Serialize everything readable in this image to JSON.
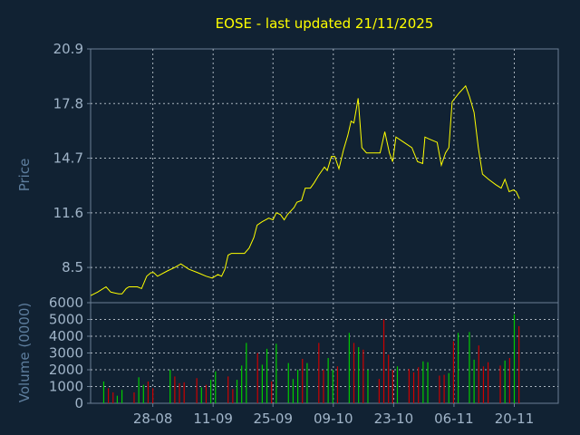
{
  "chart_data": [
    {
      "type": "line",
      "title": "EOSE - last updated 21/11/2025",
      "ylabel": "Price",
      "ylim": [
        6.5,
        20.9
      ],
      "yticks": [
        "20.9",
        "17.8",
        "14.7",
        "11.6",
        "8.5"
      ],
      "grid": true,
      "line_color": "#ffff00",
      "x_range": [
        0,
        100
      ],
      "series": [
        {
          "values": [
            [
              0,
              6.9
            ],
            [
              1.5,
              7.1
            ],
            [
              3.3,
              7.4
            ],
            [
              4.3,
              7.1
            ],
            [
              6.0,
              7.0
            ],
            [
              6.7,
              7.0
            ],
            [
              7.6,
              7.3
            ],
            [
              8.2,
              7.4
            ],
            [
              10.0,
              7.4
            ],
            [
              10.9,
              7.3
            ],
            [
              12.0,
              8.0
            ],
            [
              12.9,
              8.2
            ],
            [
              13.5,
              8.2
            ],
            [
              14.3,
              8.0
            ],
            [
              16.4,
              8.3
            ],
            [
              18.0,
              8.5
            ],
            [
              19.3,
              8.7
            ],
            [
              21.0,
              8.4
            ],
            [
              22.9,
              8.2
            ],
            [
              24.7,
              8.0
            ],
            [
              26.0,
              7.9
            ],
            [
              27.2,
              8.1
            ],
            [
              28.0,
              8.0
            ],
            [
              28.7,
              8.4
            ],
            [
              29.4,
              9.2
            ],
            [
              30.1,
              9.3
            ],
            [
              31.7,
              9.3
            ],
            [
              32.9,
              9.3
            ],
            [
              33.9,
              9.6
            ],
            [
              34.9,
              10.2
            ],
            [
              35.6,
              10.9
            ],
            [
              36.7,
              11.1
            ],
            [
              38.1,
              11.3
            ],
            [
              39.0,
              11.2
            ],
            [
              39.7,
              11.6
            ],
            [
              40.6,
              11.5
            ],
            [
              41.4,
              11.2
            ],
            [
              42.1,
              11.5
            ],
            [
              43.5,
              11.9
            ],
            [
              44.1,
              12.2
            ],
            [
              45.1,
              12.3
            ],
            [
              45.9,
              13.0
            ],
            [
              47.0,
              13.0
            ],
            [
              47.8,
              13.3
            ],
            [
              48.7,
              13.7
            ],
            [
              50.0,
              14.2
            ],
            [
              50.6,
              14.0
            ],
            [
              51.5,
              14.8
            ],
            [
              52.2,
              14.8
            ],
            [
              53.1,
              14.1
            ],
            [
              54.1,
              15.2
            ],
            [
              55.0,
              16.0
            ],
            [
              55.7,
              16.8
            ],
            [
              56.3,
              16.7
            ],
            [
              57.2,
              18.1
            ],
            [
              58.0,
              15.3
            ],
            [
              59.0,
              15.0
            ],
            [
              60.5,
              15.0
            ],
            [
              61.9,
              15.0
            ],
            [
              62.9,
              16.2
            ],
            [
              63.9,
              15.0
            ],
            [
              64.6,
              14.5
            ],
            [
              65.3,
              15.9
            ],
            [
              67.0,
              15.6
            ],
            [
              68.7,
              15.3
            ],
            [
              69.9,
              14.5
            ],
            [
              71.0,
              14.4
            ],
            [
              71.5,
              15.9
            ],
            [
              72.3,
              15.8
            ],
            [
              74.1,
              15.6
            ],
            [
              75.0,
              14.3
            ],
            [
              75.9,
              15.0
            ],
            [
              76.6,
              15.3
            ],
            [
              77.3,
              17.9
            ],
            [
              78.8,
              18.4
            ],
            [
              80.2,
              18.8
            ],
            [
              81.0,
              18.2
            ],
            [
              82.0,
              17.3
            ],
            [
              82.9,
              15.3
            ],
            [
              83.8,
              13.8
            ],
            [
              85.1,
              13.5
            ],
            [
              86.6,
              13.2
            ],
            [
              87.8,
              13.0
            ],
            [
              88.6,
              13.5
            ],
            [
              89.5,
              12.8
            ],
            [
              90.4,
              12.9
            ],
            [
              91.0,
              12.8
            ],
            [
              91.7,
              12.4
            ]
          ]
        }
      ]
    },
    {
      "type": "bar",
      "ylabel": "Volume (0000)",
      "ylim": [
        0,
        6000
      ],
      "yticks": [
        "6000",
        "5000",
        "4000",
        "3000",
        "2000",
        "1000",
        "0"
      ],
      "xticks": [
        {
          "label": "28-08",
          "x": 13.3
        },
        {
          "label": "11-09",
          "x": 26.2
        },
        {
          "label": "25-09",
          "x": 39.0
        },
        {
          "label": "09-10",
          "x": 51.9
        },
        {
          "label": "23-10",
          "x": 64.8
        },
        {
          "label": "06-11",
          "x": 77.7
        },
        {
          "label": "20-11",
          "x": 90.6
        }
      ],
      "grid": true,
      "up_color": "#00cc00",
      "down_color": "#cc0000",
      "values": [
        {
          "x": 2.8,
          "v": 1300,
          "up": true
        },
        {
          "x": 3.8,
          "v": 900,
          "up": false
        },
        {
          "x": 4.8,
          "v": 650,
          "up": false
        },
        {
          "x": 5.7,
          "v": 450,
          "up": true
        },
        {
          "x": 6.7,
          "v": 800,
          "up": true
        },
        {
          "x": 9.3,
          "v": 650,
          "up": false
        },
        {
          "x": 10.3,
          "v": 1550,
          "up": true
        },
        {
          "x": 11.3,
          "v": 1100,
          "up": true
        },
        {
          "x": 12.3,
          "v": 1300,
          "up": false
        },
        {
          "x": 13.3,
          "v": 900,
          "up": false
        },
        {
          "x": 17.0,
          "v": 2000,
          "up": true
        },
        {
          "x": 18.0,
          "v": 1600,
          "up": false
        },
        {
          "x": 19.0,
          "v": 1200,
          "up": false
        },
        {
          "x": 20.0,
          "v": 1250,
          "up": false
        },
        {
          "x": 22.7,
          "v": 1500,
          "up": false
        },
        {
          "x": 23.7,
          "v": 950,
          "up": true
        },
        {
          "x": 24.7,
          "v": 1100,
          "up": false
        },
        {
          "x": 25.7,
          "v": 1400,
          "up": true
        },
        {
          "x": 26.7,
          "v": 1900,
          "up": true
        },
        {
          "x": 29.4,
          "v": 1600,
          "up": false
        },
        {
          "x": 30.4,
          "v": 850,
          "up": false
        },
        {
          "x": 31.3,
          "v": 1400,
          "up": true
        },
        {
          "x": 32.3,
          "v": 2250,
          "up": true
        },
        {
          "x": 33.3,
          "v": 3600,
          "up": true
        },
        {
          "x": 35.7,
          "v": 3000,
          "up": false
        },
        {
          "x": 36.7,
          "v": 2300,
          "up": true
        },
        {
          "x": 37.7,
          "v": 3250,
          "up": true
        },
        {
          "x": 38.7,
          "v": 1300,
          "up": false
        },
        {
          "x": 39.7,
          "v": 3550,
          "up": true
        },
        {
          "x": 42.3,
          "v": 2400,
          "up": true
        },
        {
          "x": 43.3,
          "v": 1450,
          "up": true
        },
        {
          "x": 44.3,
          "v": 2000,
          "up": true
        },
        {
          "x": 45.3,
          "v": 2650,
          "up": false
        },
        {
          "x": 46.3,
          "v": 2400,
          "up": true
        },
        {
          "x": 48.8,
          "v": 3600,
          "up": false
        },
        {
          "x": 49.8,
          "v": 2000,
          "up": false
        },
        {
          "x": 50.8,
          "v": 2700,
          "up": true
        },
        {
          "x": 51.8,
          "v": 2000,
          "up": true
        },
        {
          "x": 52.8,
          "v": 2200,
          "up": false
        },
        {
          "x": 55.3,
          "v": 4200,
          "up": true
        },
        {
          "x": 56.3,
          "v": 3600,
          "up": false
        },
        {
          "x": 57.3,
          "v": 3350,
          "up": true
        },
        {
          "x": 58.3,
          "v": 3200,
          "up": false
        },
        {
          "x": 59.3,
          "v": 2000,
          "up": true
        },
        {
          "x": 61.7,
          "v": 1450,
          "up": false
        },
        {
          "x": 62.7,
          "v": 5000,
          "up": false
        },
        {
          "x": 63.7,
          "v": 2900,
          "up": false
        },
        {
          "x": 64.6,
          "v": 2000,
          "up": false
        },
        {
          "x": 65.6,
          "v": 2200,
          "up": true
        },
        {
          "x": 68.1,
          "v": 2050,
          "up": false
        },
        {
          "x": 69.1,
          "v": 1850,
          "up": false
        },
        {
          "x": 70.1,
          "v": 2150,
          "up": false
        },
        {
          "x": 71.1,
          "v": 2500,
          "up": true
        },
        {
          "x": 72.1,
          "v": 2450,
          "up": true
        },
        {
          "x": 74.6,
          "v": 1650,
          "up": false
        },
        {
          "x": 75.6,
          "v": 1700,
          "up": false
        },
        {
          "x": 76.6,
          "v": 1800,
          "up": true
        },
        {
          "x": 77.6,
          "v": 3700,
          "up": false
        },
        {
          "x": 78.6,
          "v": 4200,
          "up": true
        },
        {
          "x": 81.0,
          "v": 4250,
          "up": true
        },
        {
          "x": 82.0,
          "v": 2600,
          "up": true
        },
        {
          "x": 83.0,
          "v": 3450,
          "up": false
        },
        {
          "x": 84.0,
          "v": 2200,
          "up": false
        },
        {
          "x": 85.0,
          "v": 2450,
          "up": false
        },
        {
          "x": 87.6,
          "v": 2250,
          "up": false
        },
        {
          "x": 88.6,
          "v": 2550,
          "up": true
        },
        {
          "x": 89.6,
          "v": 2700,
          "up": false
        },
        {
          "x": 90.6,
          "v": 5300,
          "up": true
        },
        {
          "x": 91.6,
          "v": 4600,
          "up": false
        }
      ]
    }
  ]
}
